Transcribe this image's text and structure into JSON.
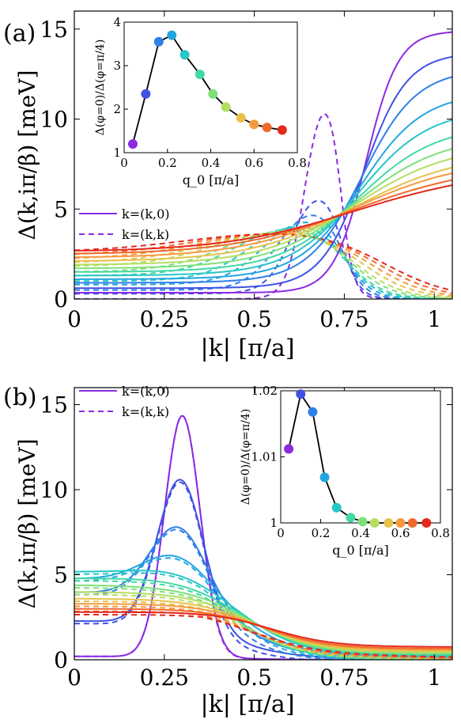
{
  "chart_data": [
    {
      "panel": "(a)",
      "type": "line",
      "xlabel": "|k| [π/a]",
      "ylabel": "Δ(k,iπ/β) [meV]",
      "xlim": [
        0,
        1.05
      ],
      "ylim": [
        0,
        16
      ],
      "xticks": [
        "0",
        "0.25",
        "0.5",
        "0.75",
        "1"
      ],
      "yticks": [
        "0",
        "5",
        "10",
        "15"
      ],
      "legend": {
        "placement": "left",
        "entries": [
          {
            "label": "k=(k,0)",
            "style": "solid"
          },
          {
            "label": "k=(k,k)",
            "style": "dashed"
          }
        ]
      },
      "colors": [
        "#8a2be2",
        "#3f51e4",
        "#2f7fe8",
        "#22a6e0",
        "#26c6c6",
        "#42d9a4",
        "#7ee07a",
        "#b3de62",
        "#e6c24c",
        "#f59a3c",
        "#f06a2c",
        "#e4281c"
      ],
      "solid_series": {
        "params": [
          {
            "c": 0.69,
            "w": 0.045,
            "a0": 0.35,
            "top": 14.9
          },
          {
            "c": 0.685,
            "w": 0.06,
            "a0": 0.6,
            "top": 13.6
          },
          {
            "c": 0.68,
            "w": 0.075,
            "a0": 0.9,
            "top": 12.6
          },
          {
            "c": 0.675,
            "w": 0.085,
            "a0": 1.1,
            "top": 11.2
          },
          {
            "c": 0.67,
            "w": 0.095,
            "a0": 1.3,
            "top": 10.2
          },
          {
            "c": 0.665,
            "w": 0.105,
            "a0": 1.5,
            "top": 9.2
          },
          {
            "c": 0.66,
            "w": 0.115,
            "a0": 1.7,
            "top": 8.5
          },
          {
            "c": 0.655,
            "w": 0.125,
            "a0": 1.9,
            "top": 7.9
          },
          {
            "c": 0.65,
            "w": 0.135,
            "a0": 2.1,
            "top": 7.3
          },
          {
            "c": 0.645,
            "w": 0.145,
            "a0": 2.3,
            "top": 6.9
          },
          {
            "c": 0.64,
            "w": 0.155,
            "a0": 2.5,
            "top": 6.4
          },
          {
            "c": 0.635,
            "w": 0.165,
            "a0": 2.65,
            "top": 6.0
          }
        ]
      },
      "dashed_series": {
        "params": [
          {
            "c": 0.71,
            "w": 0.05,
            "a0": 0.0,
            "peak": 12.3
          },
          {
            "c": 0.7,
            "w": 0.07,
            "a0": 0.3,
            "peak": 6.5
          },
          {
            "c": 0.69,
            "w": 0.09,
            "a0": 0.5,
            "peak": 5.5
          },
          {
            "c": 0.68,
            "w": 0.11,
            "a0": 0.8,
            "peak": 5.0
          },
          {
            "c": 0.67,
            "w": 0.13,
            "a0": 1.0,
            "peak": 4.7
          },
          {
            "c": 0.66,
            "w": 0.15,
            "a0": 1.3,
            "peak": 4.5
          },
          {
            "c": 0.66,
            "w": 0.17,
            "a0": 1.5,
            "peak": 4.35
          },
          {
            "c": 0.66,
            "w": 0.19,
            "a0": 1.8,
            "peak": 4.2
          },
          {
            "c": 0.67,
            "w": 0.21,
            "a0": 2.0,
            "peak": 4.1
          },
          {
            "c": 0.68,
            "w": 0.23,
            "a0": 2.2,
            "peak": 4.05
          },
          {
            "c": 0.69,
            "w": 0.25,
            "a0": 2.4,
            "peak": 4.0
          },
          {
            "c": 0.7,
            "w": 0.27,
            "a0": 2.6,
            "peak": 3.95
          }
        ]
      },
      "inset": {
        "type": "scatter-line",
        "xlabel": "q_0 [π/a]",
        "ylabel": "Δ(φ=0)/Δ(φ=π/4)",
        "xlim": [
          0,
          0.8
        ],
        "ylim": [
          1,
          4
        ],
        "xticks": [
          "0",
          "0.2",
          "0.4",
          "0.6",
          "0.8"
        ],
        "yticks": [
          "1",
          "2",
          "3",
          "4"
        ],
        "x": [
          0.04,
          0.1,
          0.16,
          0.22,
          0.28,
          0.35,
          0.41,
          0.47,
          0.54,
          0.6,
          0.66,
          0.73
        ],
        "y": [
          1.2,
          2.35,
          3.55,
          3.7,
          3.25,
          2.8,
          2.35,
          2.05,
          1.8,
          1.65,
          1.58,
          1.52
        ]
      }
    },
    {
      "panel": "(b)",
      "type": "line",
      "xlabel": "|k| [π/a]",
      "ylabel": "Δ(k,iπ/β) [meV]",
      "xlim": [
        0,
        1.05
      ],
      "ylim": [
        0,
        16
      ],
      "xticks": [
        "0",
        "0.25",
        "0.5",
        "0.75",
        "1"
      ],
      "yticks": [
        "0",
        "5",
        "10",
        "15"
      ],
      "legend": {
        "placement": "top-left",
        "entries": [
          {
            "label": "k=(k,0)",
            "style": "solid"
          },
          {
            "label": "k=(k,k)",
            "style": "dashed"
          }
        ]
      },
      "colors": [
        "#8a2be2",
        "#3f51e4",
        "#2f7fe8",
        "#22a6e0",
        "#26c6c6",
        "#42d9a4",
        "#7ee07a",
        "#b3de62",
        "#e6c24c",
        "#f59a3c",
        "#f06a2c",
        "#e4281c"
      ],
      "series_params": [
        {
          "a0": 0.2,
          "peak": 14.4,
          "peakx": 0.3,
          "w": 0.07,
          "tail": 0.0
        },
        {
          "a0": 2.3,
          "peak": 11.0,
          "peakx": 0.295,
          "w": 0.09,
          "tail": 0.05
        },
        {
          "a0": 4.0,
          "peak": 8.4,
          "peakx": 0.29,
          "w": 0.11,
          "tail": 0.1
        },
        {
          "a0": 4.8,
          "peak": 6.7,
          "peakx": 0.285,
          "w": 0.13,
          "tail": 0.15
        },
        {
          "a0": 5.2,
          "peak": 5.6,
          "peakx": 0.28,
          "w": 0.15,
          "tail": 0.2
        },
        {
          "a0": 4.8,
          "peak": 4.9,
          "peakx": 0.27,
          "w": 0.17,
          "tail": 0.28
        },
        {
          "a0": 4.4,
          "peak": 4.4,
          "peakx": 0.26,
          "w": 0.19,
          "tail": 0.35
        },
        {
          "a0": 4.0,
          "peak": 4.0,
          "peakx": 0.25,
          "w": 0.21,
          "tail": 0.42
        },
        {
          "a0": 3.6,
          "peak": 3.6,
          "peakx": 0.24,
          "w": 0.23,
          "tail": 0.5
        },
        {
          "a0": 3.3,
          "peak": 3.3,
          "peakx": 0.23,
          "w": 0.25,
          "tail": 0.58
        },
        {
          "a0": 3.0,
          "peak": 3.0,
          "peakx": 0.22,
          "w": 0.27,
          "tail": 0.65
        },
        {
          "a0": 2.8,
          "peak": 2.8,
          "peakx": 0.2,
          "w": 0.29,
          "tail": 0.75
        }
      ],
      "inset": {
        "type": "scatter-line",
        "xlabel": "q_0 [π/a]",
        "ylabel": "Δ(φ=0)/Δ(φ=π/4)",
        "xlim": [
          0,
          0.8
        ],
        "ylim": [
          1,
          1.02
        ],
        "xticks": [
          "0",
          "0.2",
          "0.4",
          "0.6",
          "0.8"
        ],
        "yticks": [
          "1",
          "1.01",
          "1.02"
        ],
        "x": [
          0.04,
          0.1,
          0.16,
          0.22,
          0.28,
          0.35,
          0.41,
          0.47,
          0.54,
          0.6,
          0.66,
          0.73
        ],
        "y": [
          1.0112,
          1.0195,
          1.0168,
          1.0069,
          1.0023,
          1.0008,
          1.0002,
          1.0,
          1.0,
          1.0,
          1.0,
          1.0
        ]
      }
    }
  ]
}
